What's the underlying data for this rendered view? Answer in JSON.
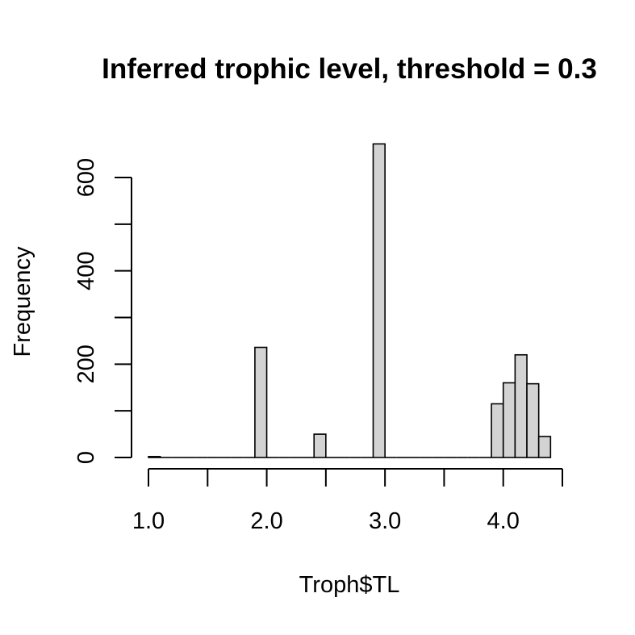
{
  "chart_data": {
    "type": "bar",
    "title": "Inferred trophic level, threshold = 0.3",
    "xlabel": "Troph$TL",
    "ylabel": "Frequency",
    "xlim": [
      1.0,
      4.5
    ],
    "ylim": [
      0,
      675
    ],
    "bin_width": 0.1,
    "x_ticks": [
      1.0,
      1.5,
      2.0,
      2.5,
      3.0,
      3.5,
      4.0,
      4.5
    ],
    "x_tick_labels": [
      {
        "value": 1.0,
        "label": "1.0"
      },
      {
        "value": 2.0,
        "label": "2.0"
      },
      {
        "value": 3.0,
        "label": "3.0"
      },
      {
        "value": 4.0,
        "label": "4.0"
      }
    ],
    "y_ticks": [
      0,
      100,
      200,
      300,
      400,
      500,
      600
    ],
    "y_tick_labels": [
      {
        "value": 0,
        "label": "0"
      },
      {
        "value": 200,
        "label": "200"
      },
      {
        "value": 400,
        "label": "400"
      },
      {
        "value": 600,
        "label": "600"
      }
    ],
    "bins": [
      {
        "start": 1.0,
        "end": 1.1,
        "count": 2
      },
      {
        "start": 1.1,
        "end": 1.2,
        "count": 0
      },
      {
        "start": 1.2,
        "end": 1.3,
        "count": 0
      },
      {
        "start": 1.3,
        "end": 1.4,
        "count": 0
      },
      {
        "start": 1.4,
        "end": 1.5,
        "count": 0
      },
      {
        "start": 1.5,
        "end": 1.6,
        "count": 0
      },
      {
        "start": 1.6,
        "end": 1.7,
        "count": 0
      },
      {
        "start": 1.7,
        "end": 1.8,
        "count": 0
      },
      {
        "start": 1.8,
        "end": 1.9,
        "count": 0
      },
      {
        "start": 1.9,
        "end": 2.0,
        "count": 236
      },
      {
        "start": 2.0,
        "end": 2.1,
        "count": 0
      },
      {
        "start": 2.1,
        "end": 2.2,
        "count": 0
      },
      {
        "start": 2.2,
        "end": 2.3,
        "count": 0
      },
      {
        "start": 2.3,
        "end": 2.4,
        "count": 0
      },
      {
        "start": 2.4,
        "end": 2.5,
        "count": 50
      },
      {
        "start": 2.5,
        "end": 2.6,
        "count": 0
      },
      {
        "start": 2.6,
        "end": 2.7,
        "count": 0
      },
      {
        "start": 2.7,
        "end": 2.8,
        "count": 0
      },
      {
        "start": 2.8,
        "end": 2.9,
        "count": 0
      },
      {
        "start": 2.9,
        "end": 3.0,
        "count": 672
      },
      {
        "start": 3.0,
        "end": 3.1,
        "count": 0
      },
      {
        "start": 3.1,
        "end": 3.2,
        "count": 0
      },
      {
        "start": 3.2,
        "end": 3.3,
        "count": 0
      },
      {
        "start": 3.3,
        "end": 3.4,
        "count": 0
      },
      {
        "start": 3.4,
        "end": 3.5,
        "count": 0
      },
      {
        "start": 3.5,
        "end": 3.6,
        "count": 0
      },
      {
        "start": 3.6,
        "end": 3.7,
        "count": 0
      },
      {
        "start": 3.7,
        "end": 3.8,
        "count": 0
      },
      {
        "start": 3.8,
        "end": 3.9,
        "count": 0
      },
      {
        "start": 3.9,
        "end": 4.0,
        "count": 115
      },
      {
        "start": 4.0,
        "end": 4.1,
        "count": 160
      },
      {
        "start": 4.1,
        "end": 4.2,
        "count": 220
      },
      {
        "start": 4.2,
        "end": 4.3,
        "count": 158
      },
      {
        "start": 4.3,
        "end": 4.4,
        "count": 45
      }
    ],
    "bar_fill": "#d3d3d3",
    "bar_stroke": "#000000",
    "grid": false
  }
}
